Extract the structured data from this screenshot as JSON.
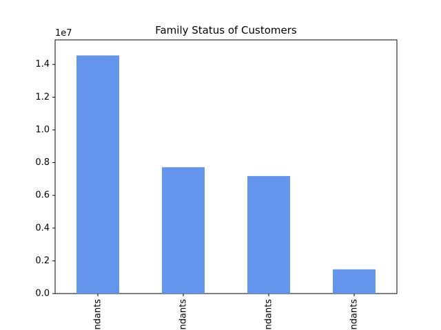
{
  "chart_data": {
    "type": "bar",
    "title": "Family Status of Customers",
    "xlabel": "",
    "ylabel": "",
    "categories": [
      "ndants",
      "ndants",
      "ndants",
      "ndants"
    ],
    "values": [
      14550000,
      7720000,
      7180000,
      1480000
    ],
    "ylim": [
      0,
      15500000
    ],
    "y_offset_label": "1e7",
    "y_scale": 10000000,
    "y_ticks": [
      0,
      2000000,
      4000000,
      6000000,
      8000000,
      10000000,
      12000000,
      14000000
    ],
    "y_tick_labels": [
      "0.0",
      "0.2",
      "0.4",
      "0.6",
      "0.8",
      "1.0",
      "1.2",
      "1.4"
    ],
    "bar_color": "#6495ED",
    "grid": false,
    "legend": "none"
  }
}
